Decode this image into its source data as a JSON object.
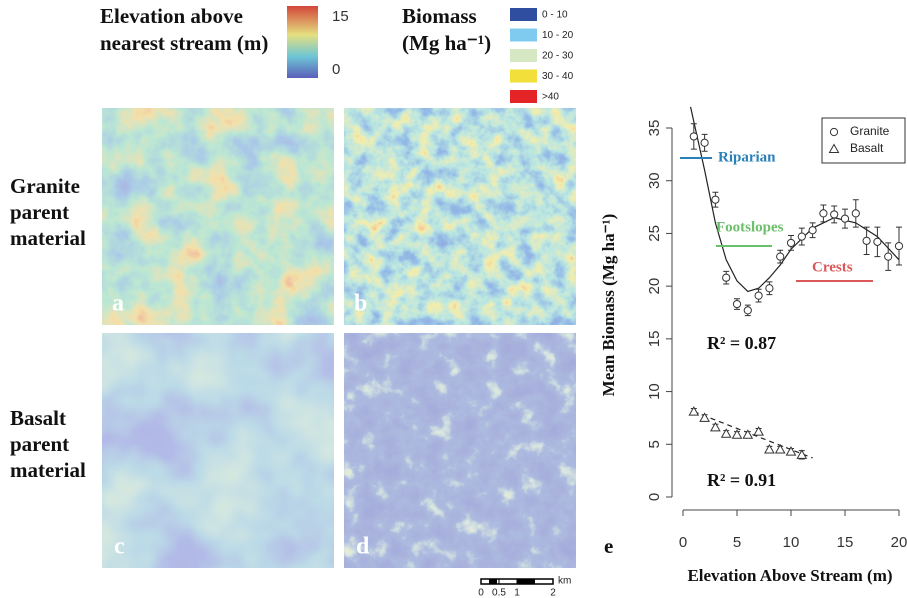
{
  "figure": {
    "elevation_title": [
      "Elevation above",
      "nearest stream (m)"
    ],
    "elevation_scale": [
      15,
      0
    ],
    "biomass_title": [
      "Biomass",
      "(Mg ha⁻¹)"
    ],
    "biomass_classes": [
      {
        "label": "0 - 10",
        "color": "#2f4ea0"
      },
      {
        "label": "10 - 20",
        "color": "#7fcbef"
      },
      {
        "label": "20 - 30",
        "color": "#d5e8c3"
      },
      {
        "label": "30 - 40",
        "color": "#f2df3a"
      },
      {
        "label": ">40",
        "color": "#e42426"
      }
    ],
    "row_labels": [
      [
        "Granite",
        "parent",
        "material"
      ],
      [
        "Basalt",
        "parent",
        "material"
      ]
    ],
    "panel_letters": [
      "a",
      "b",
      "c",
      "d",
      "e"
    ],
    "scale_bar": {
      "values": [
        0,
        0.5,
        1,
        2
      ],
      "unit": "km"
    }
  },
  "chart_data": {
    "type": "scatter",
    "x_label": "Elevation Above Stream (m)",
    "y_label": "Mean Biomass (Mg ha⁻¹)",
    "xlim": [
      0,
      20
    ],
    "xticks": [
      0,
      5,
      10,
      15,
      20
    ],
    "ylim": [
      0,
      35
    ],
    "yticks": [
      0,
      5,
      10,
      15,
      20,
      25,
      30,
      35
    ],
    "legend": "top-right",
    "series": [
      {
        "name": "Granite",
        "marker": "circle",
        "color": "#333333",
        "x": [
          1,
          2,
          3,
          4,
          5,
          6,
          7,
          8,
          9,
          10,
          11,
          12,
          13,
          14,
          15,
          16,
          17,
          18,
          19,
          20
        ],
        "values": [
          34.2,
          33.6,
          28.2,
          20.8,
          18.3,
          17.7,
          19.1,
          19.8,
          22.8,
          24.1,
          24.7,
          25.3,
          26.9,
          26.8,
          26.4,
          26.9,
          24.3,
          24.2,
          22.8,
          23.8
        ],
        "errors": [
          1.2,
          0.8,
          0.7,
          0.6,
          0.5,
          0.5,
          0.6,
          0.6,
          0.6,
          0.7,
          0.8,
          0.7,
          0.8,
          0.8,
          0.9,
          1.3,
          1.3,
          1.4,
          1.3,
          1.8
        ]
      },
      {
        "name": "Basalt",
        "marker": "triangle",
        "color": "#333333",
        "x": [
          1,
          2,
          3,
          4,
          5,
          6,
          7,
          8,
          9,
          10,
          11
        ],
        "values": [
          8.1,
          7.5,
          6.6,
          6.0,
          5.9,
          5.9,
          6.2,
          4.5,
          4.5,
          4.3,
          4.0
        ],
        "errors": [
          0.3,
          0.3,
          0.3,
          0.3,
          0.3,
          0.3,
          0.3,
          0.3,
          0.3,
          0.3,
          0.4
        ]
      }
    ],
    "fits": [
      {
        "style": "solid",
        "x": [
          0.7,
          2,
          3,
          4,
          5,
          6,
          7,
          8,
          9,
          10,
          12,
          14,
          16,
          18,
          20
        ],
        "values": [
          37,
          31,
          26,
          22.5,
          20.5,
          19.5,
          19.8,
          20.8,
          22,
          23.5,
          25.5,
          26.5,
          26,
          24.7,
          22.5
        ]
      },
      {
        "style": "dashed",
        "x": [
          1,
          12
        ],
        "values": [
          8.1,
          3.7
        ]
      }
    ],
    "annotations": [
      {
        "text": "Riparian",
        "color": "#2a80b9"
      },
      {
        "text": "Footslopes",
        "color": "#6cbf6a"
      },
      {
        "text": "Crests",
        "color": "#d9595a"
      },
      {
        "text": "R² = 0.87",
        "color": "#111111"
      },
      {
        "text": "R² = 0.91",
        "color": "#111111"
      }
    ]
  }
}
